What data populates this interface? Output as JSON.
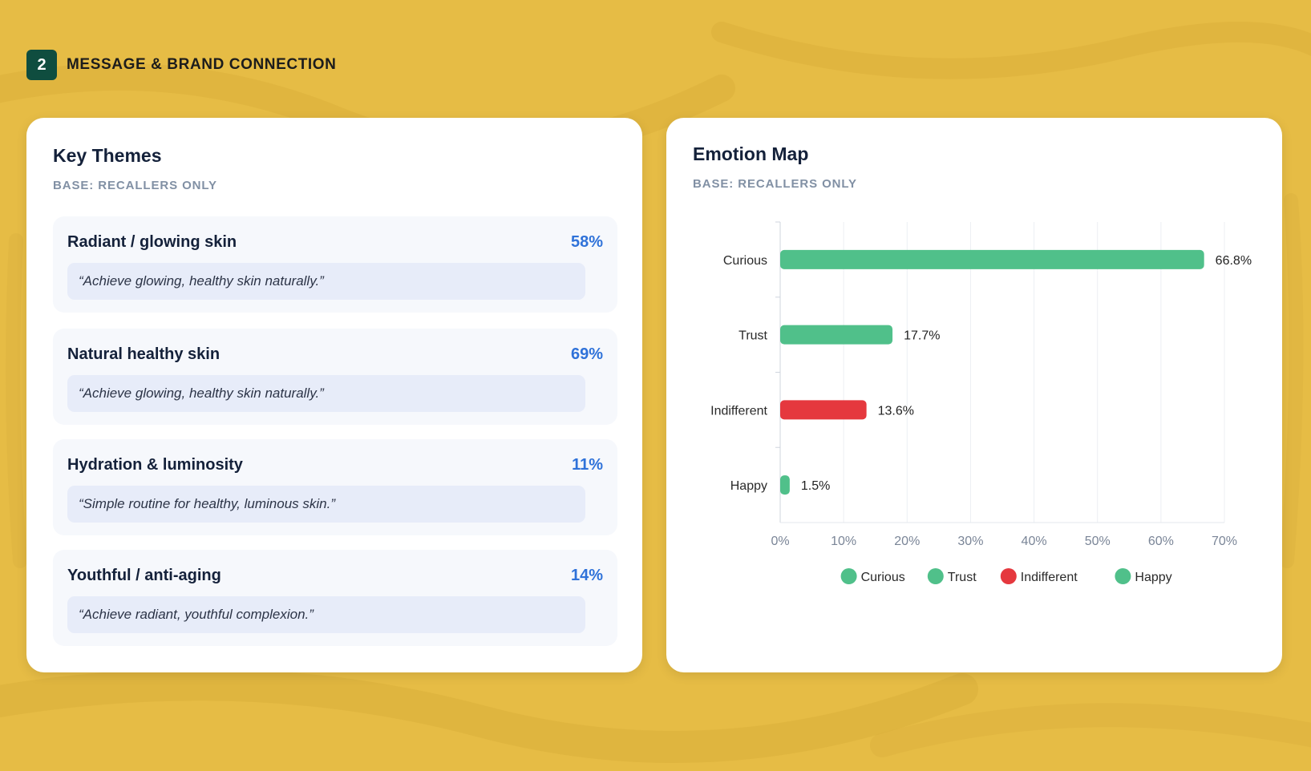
{
  "section": {
    "number": "2",
    "title": "MESSAGE & BRAND CONNECTION"
  },
  "themes_card": {
    "title": "Key Themes",
    "subtitle": "BASE: RECALLERS ONLY",
    "items": [
      {
        "label": "Radiant / glowing skin",
        "percent": "58%",
        "quote": "“Achieve glowing, healthy skin naturally.”"
      },
      {
        "label": "Natural healthy skin",
        "percent": "69%",
        "quote": "“Achieve glowing, healthy skin naturally.”"
      },
      {
        "label": "Hydration & luminosity",
        "percent": "11%",
        "quote": "“Simple routine for healthy, luminous skin.”"
      },
      {
        "label": "Youthful / anti-aging",
        "percent": "14%",
        "quote": "“Achieve radiant, youthful complexion.”"
      }
    ]
  },
  "emotion_card": {
    "title": "Emotion Map",
    "subtitle": "BASE: RECALLERS ONLY"
  },
  "colors": {
    "positive": "#50c08a",
    "negative": "#e5383e",
    "percent_accent": "#2f72d9",
    "section_badge": "#0f4d3f",
    "background": "#e6bc45"
  },
  "chart_data": {
    "type": "bar",
    "orientation": "horizontal",
    "title": "Emotion Map",
    "categories": [
      "Curious",
      "Trust",
      "Indifferent",
      "Happy"
    ],
    "values": [
      66.8,
      17.7,
      13.6,
      1.5
    ],
    "value_labels": [
      "66.8%",
      "17.7%",
      "13.6%",
      "1.5%"
    ],
    "colors": [
      "#50c08a",
      "#50c08a",
      "#e5383e",
      "#50c08a"
    ],
    "xlim": [
      0,
      70
    ],
    "xticks": [
      "0%",
      "10%",
      "20%",
      "30%",
      "40%",
      "50%",
      "60%",
      "70%"
    ],
    "grid": true,
    "legend": {
      "placement": "bottom",
      "entries": [
        {
          "label": "Curious",
          "color": "#50c08a"
        },
        {
          "label": "Trust",
          "color": "#50c08a"
        },
        {
          "label": "Indifferent",
          "color": "#e5383e"
        },
        {
          "label": "Happy",
          "color": "#50c08a"
        }
      ]
    }
  }
}
